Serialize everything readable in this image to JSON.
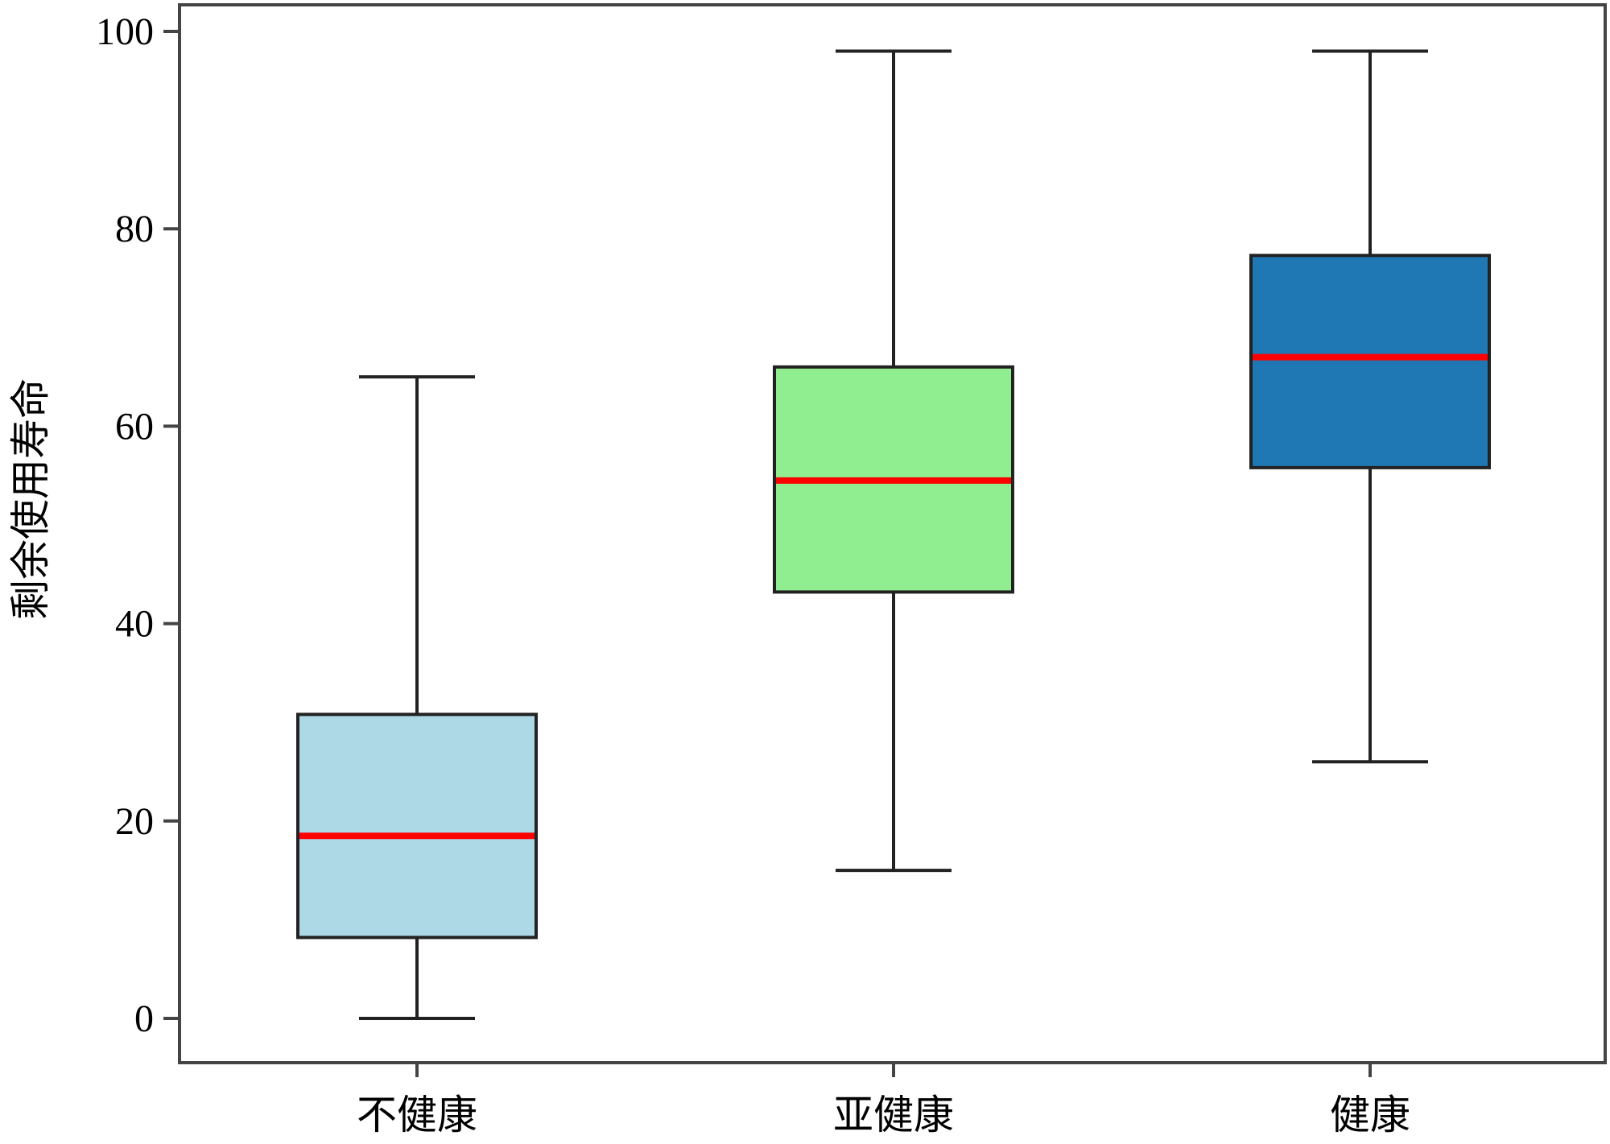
{
  "chart_data": {
    "type": "box",
    "title": "",
    "xlabel": "",
    "ylabel": "剩余使用寿命",
    "ylim": [
      -9,
      103
    ],
    "yticks": [
      0,
      20,
      40,
      60,
      80,
      100
    ],
    "grid": false,
    "categories": [
      "不健康",
      "亚健康",
      "健康"
    ],
    "boxes": [
      {
        "category": "不健康",
        "whisker_low": 0,
        "q1": 8.2,
        "median": 18.5,
        "q3": 30.8,
        "whisker_high": 65,
        "color": "#add8e6"
      },
      {
        "category": "亚健康",
        "whisker_low": 15,
        "q1": 43.2,
        "median": 54.5,
        "q3": 66,
        "whisker_high": 98,
        "color": "#90ee90"
      },
      {
        "category": "健康",
        "whisker_low": 26,
        "q1": 55.8,
        "median": 67,
        "q3": 77.3,
        "whisker_high": 98,
        "color": "#1f77b4"
      }
    ],
    "median_color": "#ff0000",
    "line_color": "#222222"
  }
}
